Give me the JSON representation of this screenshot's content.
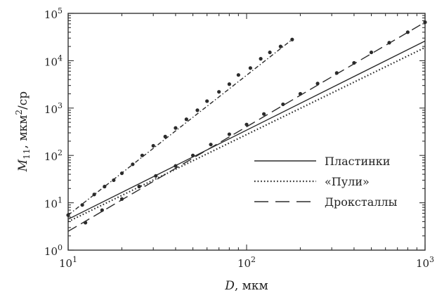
{
  "chart_data": {
    "type": "line",
    "x_scale": "log",
    "y_scale": "log",
    "xlim": [
      10,
      1000
    ],
    "ylim": [
      1,
      100000
    ],
    "xlabel": {
      "symbol": "D",
      "unit": ", мкм"
    },
    "ylabel": {
      "symbol": "M",
      "subscript": "11",
      "unit": ",  мкм",
      "unit_sup": "2",
      "unit_tail": "/ср"
    },
    "x_ticks": [
      {
        "value": 10,
        "base": "10",
        "exp": "1"
      },
      {
        "value": 100,
        "base": "10",
        "exp": "2"
      },
      {
        "value": 1000,
        "base": "10",
        "exp": "3"
      }
    ],
    "y_ticks": [
      {
        "value": 1,
        "base": "10",
        "exp": "0"
      },
      {
        "value": 10,
        "base": "10",
        "exp": "1"
      },
      {
        "value": 100,
        "base": "10",
        "exp": "2"
      },
      {
        "value": 1000,
        "base": "10",
        "exp": "3"
      },
      {
        "value": 10000,
        "base": "10",
        "exp": "4"
      },
      {
        "value": 100000,
        "base": "10",
        "exp": "5"
      }
    ],
    "legend_position": "right-middle",
    "grid": false,
    "series": [
      {
        "name": "Пластинки",
        "style": "solid",
        "color": "#2b2b2b",
        "line": [
          [
            10,
            4.5
          ],
          [
            1000,
            26000
          ]
        ]
      },
      {
        "name": "«Пули»",
        "style": "dotted",
        "color": "#2b2b2b",
        "line": [
          [
            10,
            4
          ],
          [
            1000,
            19000
          ]
        ]
      },
      {
        "name": "Дроксталлы",
        "style": "dashed",
        "color": "#2b2b2b",
        "line": [
          [
            10,
            2.5
          ],
          [
            1000,
            65000
          ]
        ],
        "markers": [
          [
            12.5,
            3.8
          ],
          [
            15.5,
            7
          ],
          [
            20,
            12
          ],
          [
            25,
            22
          ],
          [
            31,
            37
          ],
          [
            40,
            60
          ],
          [
            50,
            100
          ],
          [
            63,
            170
          ],
          [
            80,
            280
          ],
          [
            100,
            450
          ],
          [
            125,
            750
          ],
          [
            160,
            1200
          ],
          [
            200,
            2000
          ],
          [
            250,
            3300
          ],
          [
            320,
            5500
          ],
          [
            400,
            9000
          ],
          [
            500,
            15000
          ],
          [
            630,
            24000
          ],
          [
            800,
            40000
          ],
          [
            1000,
            65000
          ]
        ]
      },
      {
        "style": "dash-dot",
        "color": "#2b2b2b",
        "line": [
          [
            10,
            5.5
          ],
          [
            180,
            28000
          ]
        ],
        "markers": [
          [
            10,
            5.5
          ],
          [
            12,
            9
          ],
          [
            14,
            15
          ],
          [
            16,
            22
          ],
          [
            18,
            30
          ],
          [
            20,
            42
          ],
          [
            23,
            65
          ],
          [
            26,
            100
          ],
          [
            30,
            160
          ],
          [
            35,
            250
          ],
          [
            40,
            380
          ],
          [
            46,
            580
          ],
          [
            53,
            900
          ],
          [
            60,
            1400
          ],
          [
            70,
            2200
          ],
          [
            80,
            3200
          ],
          [
            90,
            5000
          ],
          [
            105,
            7000
          ],
          [
            120,
            11000
          ],
          [
            135,
            15000
          ],
          [
            155,
            20000
          ],
          [
            180,
            28000
          ]
        ]
      }
    ]
  }
}
